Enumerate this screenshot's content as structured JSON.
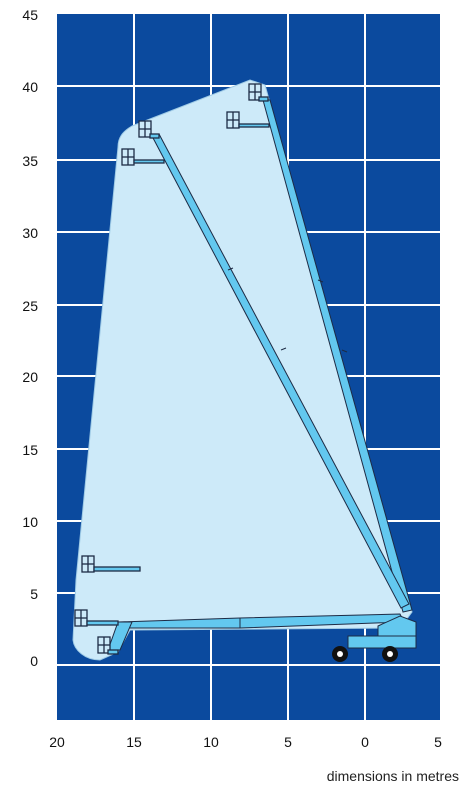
{
  "axes": {
    "y_ticks": [
      "45",
      "40",
      "35",
      "30",
      "25",
      "20",
      "15",
      "10",
      "5",
      "0"
    ],
    "x_ticks": [
      "20",
      "15",
      "10",
      "5",
      "0",
      "5"
    ]
  },
  "caption": "dimensions in metres",
  "colors": {
    "background": "#0b4a9e",
    "grid": "#ffffff",
    "envelope": "#cdeaf9",
    "boom": "#63c8ef",
    "outline": "#1d2b45",
    "wheel": "#111111"
  }
}
